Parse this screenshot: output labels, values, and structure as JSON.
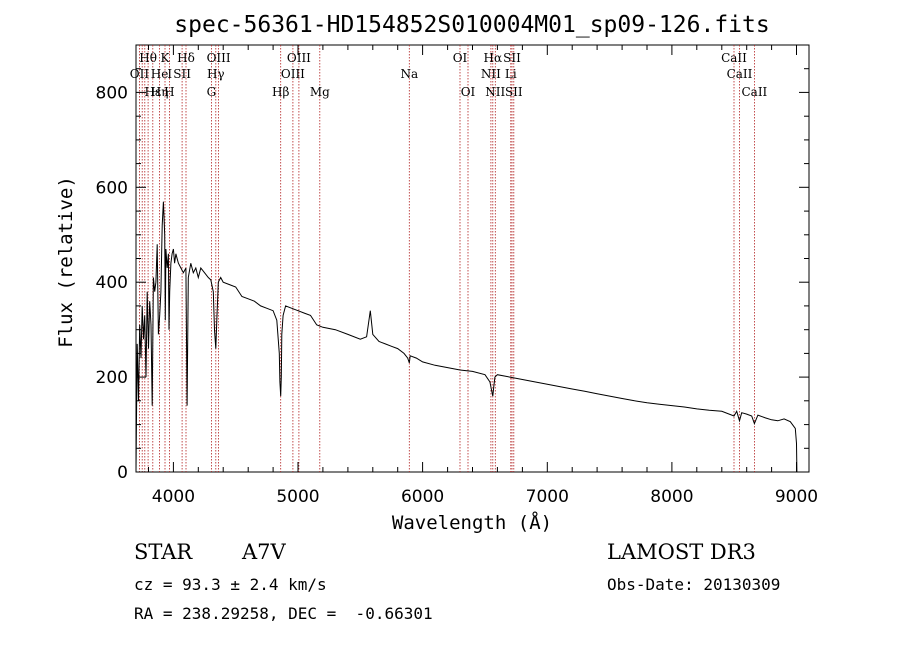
{
  "chart_data": {
    "type": "line",
    "title": "spec-56361-HD154852S010004M01_sp09-126.fits",
    "xlabel": "Wavelength (Å)",
    "ylabel": "Flux (relative)",
    "xlim": [
      3700,
      9100
    ],
    "ylim": [
      0,
      900
    ],
    "xticks": [
      4000,
      5000,
      6000,
      7000,
      8000,
      9000
    ],
    "yticks": [
      0,
      200,
      400,
      600,
      800
    ],
    "series": [
      {
        "name": "spectrum",
        "x": [
          3700,
          3710,
          3720,
          3730,
          3740,
          3750,
          3760,
          3770,
          3780,
          3790,
          3800,
          3810,
          3820,
          3830,
          3840,
          3850,
          3860,
          3870,
          3880,
          3890,
          3900,
          3910,
          3920,
          3930,
          3935,
          3940,
          3950,
          3960,
          3965,
          3970,
          3980,
          3990,
          4000,
          4010,
          4020,
          4030,
          4040,
          4060,
          4080,
          4100,
          4110,
          4120,
          4140,
          4160,
          4180,
          4200,
          4220,
          4250,
          4280,
          4300,
          4320,
          4330,
          4340,
          4350,
          4360,
          4380,
          4400,
          4450,
          4500,
          4550,
          4600,
          4650,
          4700,
          4750,
          4800,
          4830,
          4850,
          4855,
          4861,
          4866,
          4870,
          4880,
          4900,
          4950,
          5000,
          5050,
          5100,
          5150,
          5200,
          5300,
          5400,
          5500,
          5550,
          5580,
          5600,
          5650,
          5700,
          5750,
          5800,
          5850,
          5880,
          5893,
          5900,
          5950,
          6000,
          6100,
          6200,
          6300,
          6400,
          6500,
          6540,
          6555,
          6563,
          6570,
          6580,
          6600,
          6700,
          6800,
          6900,
          7000,
          7100,
          7200,
          7300,
          7400,
          7500,
          7600,
          7700,
          7800,
          7900,
          8000,
          8100,
          8200,
          8300,
          8400,
          8498,
          8520,
          8542,
          8560,
          8600,
          8640,
          8662,
          8690,
          8750,
          8800,
          8850,
          8900,
          8950,
          8990,
          9000,
          9003
        ],
        "values": [
          0,
          270,
          150,
          310,
          240,
          350,
          280,
          330,
          200,
          380,
          260,
          360,
          310,
          140,
          410,
          380,
          400,
          480,
          290,
          330,
          380,
          520,
          570,
          500,
          320,
          470,
          430,
          460,
          300,
          380,
          440,
          460,
          470,
          440,
          460,
          450,
          440,
          430,
          420,
          430,
          140,
          410,
          440,
          420,
          430,
          410,
          430,
          420,
          410,
          405,
          380,
          300,
          260,
          330,
          400,
          410,
          400,
          395,
          390,
          370,
          365,
          360,
          350,
          345,
          340,
          320,
          250,
          190,
          160,
          200,
          290,
          330,
          350,
          345,
          340,
          335,
          330,
          310,
          305,
          300,
          290,
          280,
          285,
          340,
          290,
          275,
          270,
          265,
          260,
          250,
          240,
          230,
          245,
          240,
          232,
          225,
          220,
          215,
          212,
          205,
          190,
          170,
          160,
          178,
          200,
          205,
          200,
          195,
          190,
          185,
          180,
          175,
          170,
          165,
          160,
          155,
          150,
          146,
          143,
          140,
          137,
          133,
          130,
          128,
          118,
          128,
          108,
          125,
          122,
          118,
          102,
          120,
          114,
          110,
          108,
          112,
          106,
          92,
          60,
          0
        ]
      }
    ],
    "line_labels": [
      {
        "text": "Hθ",
        "row": 0,
        "x": 3797
      },
      {
        "text": "K",
        "row": 0,
        "x": 3933
      },
      {
        "text": "Hδ",
        "row": 0,
        "x": 4101
      },
      {
        "text": "OIII",
        "row": 0,
        "x": 4363
      },
      {
        "text": "OIII",
        "row": 0,
        "x": 5007
      },
      {
        "text": "OI",
        "row": 0,
        "x": 6300
      },
      {
        "text": "Hα",
        "row": 0,
        "x": 6563
      },
      {
        "text": "SII",
        "row": 0,
        "x": 6717
      },
      {
        "text": "CaII",
        "row": 0,
        "x": 8498
      },
      {
        "text": "OII",
        "row": 1,
        "x": 3727
      },
      {
        "text": "He",
        "row": 1,
        "x": 3889
      },
      {
        "text": "I",
        "row": 1,
        "x": 3970
      },
      {
        "text": "SII",
        "row": 1,
        "x": 4070
      },
      {
        "text": "Hγ",
        "row": 1,
        "x": 4340
      },
      {
        "text": "OIII",
        "row": 1,
        "x": 4959
      },
      {
        "text": "Na",
        "row": 1,
        "x": 5893
      },
      {
        "text": "NII",
        "row": 1,
        "x": 6548
      },
      {
        "text": "Li",
        "row": 1,
        "x": 6707
      },
      {
        "text": "CaII",
        "row": 1,
        "x": 8542
      },
      {
        "text": "Hε",
        "row": 2,
        "x": 3835
      },
      {
        "text": "Hη",
        "row": 2,
        "x": 3889
      },
      {
        "text": "H",
        "row": 2,
        "x": 3968
      },
      {
        "text": "G",
        "row": 2,
        "x": 4305
      },
      {
        "text": "Hβ",
        "row": 2,
        "x": 4861
      },
      {
        "text": "Mg",
        "row": 2,
        "x": 5175
      },
      {
        "text": "OI",
        "row": 2,
        "x": 6364
      },
      {
        "text": "NII",
        "row": 2,
        "x": 6583
      },
      {
        "text": "SII",
        "row": 2,
        "x": 6731
      },
      {
        "text": "CaII",
        "row": 2,
        "x": 8662
      }
    ],
    "line_markers": [
      3727,
      3750,
      3771,
      3797,
      3835,
      3889,
      3933,
      3968,
      4070,
      4101,
      4305,
      4340,
      4363,
      4861,
      4959,
      5007,
      5175,
      5893,
      6300,
      6364,
      6548,
      6563,
      6583,
      6707,
      6717,
      6731,
      8498,
      8542,
      8662
    ]
  },
  "info": {
    "object_type": "STAR",
    "subclass": "A7V",
    "survey": "LAMOST DR3",
    "redshift_line": "cz = 93.3 ± 2.4 km/s",
    "obs_date_line": "Obs-Date: 20130309",
    "coords_line": "RA = 238.29258, DEC =  -0.66301"
  }
}
